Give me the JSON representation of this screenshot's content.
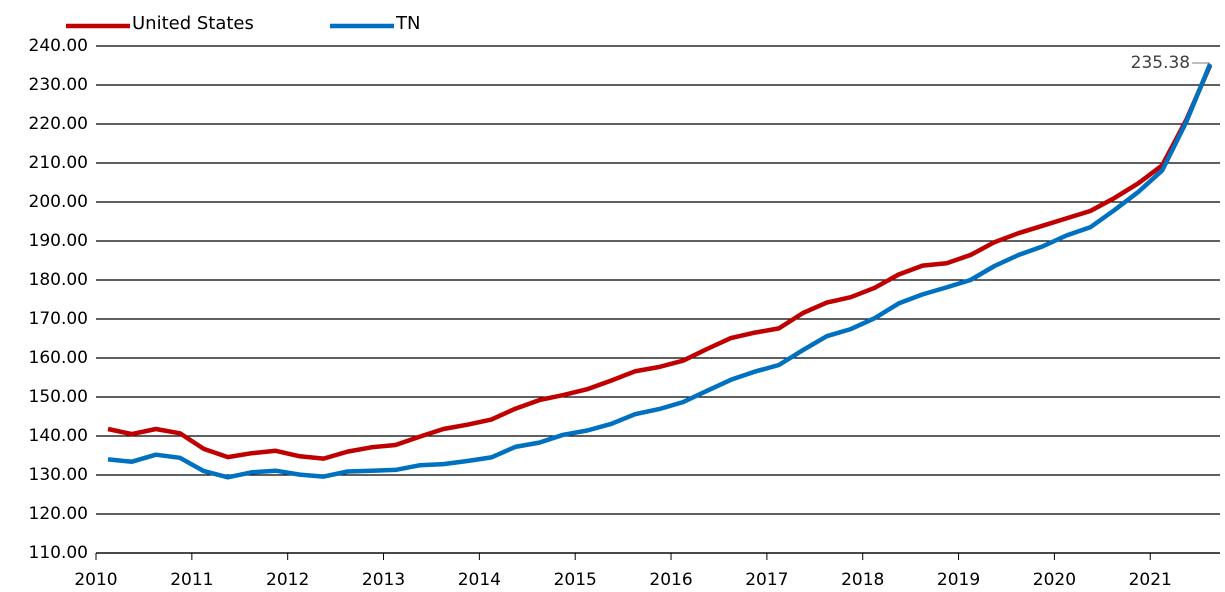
{
  "chart_data": {
    "type": "line",
    "categories": [
      "2010",
      null,
      null,
      null,
      "2011",
      null,
      null,
      null,
      "2012",
      null,
      null,
      null,
      "2013",
      null,
      null,
      null,
      "2014",
      null,
      null,
      null,
      "2015",
      null,
      null,
      null,
      "2016",
      null,
      null,
      null,
      "2017",
      null,
      null,
      null,
      "2018",
      null,
      null,
      null,
      "2019",
      null,
      null,
      null,
      "2020",
      null,
      null,
      null,
      "2021",
      null,
      null
    ],
    "series": [
      {
        "name": "United States",
        "color": "#c00000",
        "values": [
          141.8,
          140.5,
          141.8,
          140.7,
          136.7,
          134.6,
          135.6,
          136.2,
          134.8,
          134.2,
          136.0,
          137.1,
          137.7,
          139.8,
          141.8,
          142.9,
          144.2,
          147.0,
          149.2,
          150.5,
          152.0,
          154.2,
          156.6,
          157.7,
          159.3,
          162.3,
          165.1,
          166.5,
          167.6,
          171.5,
          174.2,
          175.6,
          178.0,
          181.4,
          183.7,
          184.3,
          186.4,
          189.7,
          192.0,
          193.9,
          195.8,
          197.7,
          201.0,
          204.8,
          209.4,
          221.0,
          235.0
        ]
      },
      {
        "name": "TN",
        "color": "#0070c0",
        "values": [
          134.0,
          133.4,
          135.2,
          134.4,
          131.0,
          129.4,
          130.7,
          131.1,
          130.1,
          129.6,
          130.9,
          131.1,
          131.3,
          132.5,
          132.8,
          133.6,
          134.5,
          137.2,
          138.3,
          140.3,
          141.4,
          143.1,
          145.6,
          146.9,
          148.7,
          151.6,
          154.4,
          156.5,
          158.2,
          162.0,
          165.6,
          167.4,
          170.2,
          174.0,
          176.3,
          178.1,
          180.0,
          183.6,
          186.4,
          188.6,
          191.4,
          193.5,
          197.9,
          202.6,
          208.1,
          220.5,
          235.38
        ]
      }
    ],
    "ylim": [
      110,
      240
    ],
    "yticks": [
      {
        "value": 110,
        "label": "110.00"
      },
      {
        "value": 120,
        "label": "120.00"
      },
      {
        "value": 130,
        "label": "130.00"
      },
      {
        "value": 140,
        "label": "140.00"
      },
      {
        "value": 150,
        "label": "150.00"
      },
      {
        "value": 160,
        "label": "160.00"
      },
      {
        "value": 170,
        "label": "170.00"
      },
      {
        "value": 180,
        "label": "180.00"
      },
      {
        "value": 190,
        "label": "190.00"
      },
      {
        "value": 200,
        "label": "200.00"
      },
      {
        "value": 210,
        "label": "210.00"
      },
      {
        "value": 220,
        "label": "220.00"
      },
      {
        "value": 230,
        "label": "230.00"
      },
      {
        "value": 240,
        "label": "240.00"
      }
    ],
    "grid": true,
    "legend": "top-left"
  }
}
